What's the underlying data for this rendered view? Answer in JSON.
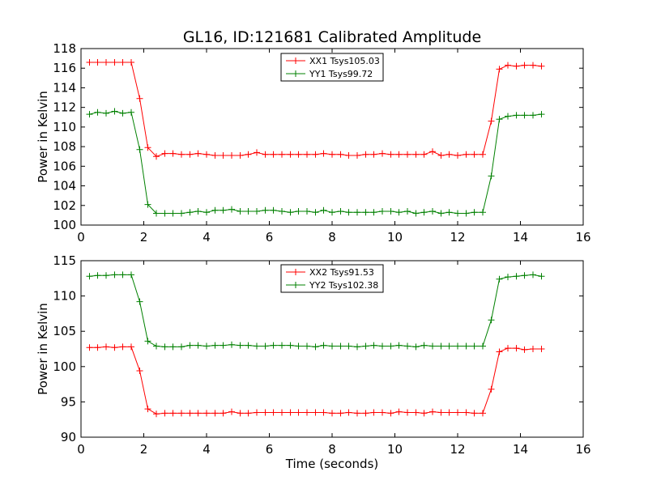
{
  "figure": {
    "title": "GL16, ID:121681 Calibrated Amplitude"
  },
  "chart_data": [
    {
      "type": "line",
      "title": "GL16, ID:121681 Calibrated Amplitude",
      "xlabel": "",
      "ylabel": "Power in Kelvin",
      "xlim": [
        0,
        16
      ],
      "ylim": [
        100,
        118
      ],
      "xticks": [
        0,
        2,
        4,
        6,
        8,
        10,
        12,
        14,
        16
      ],
      "yticks": [
        100,
        102,
        104,
        106,
        108,
        110,
        112,
        114,
        116,
        118
      ],
      "grid": false,
      "legend_position": "top-center",
      "x": [
        0.27,
        0.53,
        0.8,
        1.07,
        1.33,
        1.6,
        1.87,
        2.13,
        2.4,
        2.67,
        2.93,
        3.2,
        3.47,
        3.73,
        4.0,
        4.27,
        4.53,
        4.8,
        5.07,
        5.33,
        5.6,
        5.87,
        6.13,
        6.4,
        6.67,
        6.93,
        7.2,
        7.47,
        7.73,
        8.0,
        8.27,
        8.53,
        8.8,
        9.07,
        9.33,
        9.6,
        9.87,
        10.13,
        10.4,
        10.67,
        10.93,
        11.2,
        11.47,
        11.73,
        12.0,
        12.27,
        12.53,
        12.8,
        13.07,
        13.33,
        13.6,
        13.87,
        14.13,
        14.4,
        14.67
      ],
      "series": [
        {
          "name": "XX1 Tsys105.03",
          "color": "#ff0000",
          "values": [
            116.6,
            116.6,
            116.6,
            116.6,
            116.6,
            116.6,
            112.9,
            107.9,
            107.0,
            107.3,
            107.3,
            107.2,
            107.2,
            107.3,
            107.2,
            107.1,
            107.1,
            107.1,
            107.1,
            107.2,
            107.4,
            107.2,
            107.2,
            107.2,
            107.2,
            107.2,
            107.2,
            107.2,
            107.3,
            107.2,
            107.2,
            107.1,
            107.1,
            107.2,
            107.2,
            107.3,
            107.2,
            107.2,
            107.2,
            107.2,
            107.2,
            107.5,
            107.1,
            107.2,
            107.1,
            107.2,
            107.2,
            107.2,
            110.6,
            115.9,
            116.3,
            116.2,
            116.3,
            116.3,
            116.2
          ]
        },
        {
          "name": "YY1 Tsys99.72",
          "color": "#008000",
          "values": [
            111.3,
            111.5,
            111.4,
            111.6,
            111.4,
            111.5,
            107.7,
            102.1,
            101.2,
            101.2,
            101.2,
            101.2,
            101.3,
            101.4,
            101.3,
            101.5,
            101.5,
            101.6,
            101.4,
            101.4,
            101.4,
            101.5,
            101.5,
            101.4,
            101.3,
            101.4,
            101.4,
            101.3,
            101.5,
            101.3,
            101.4,
            101.3,
            101.3,
            101.3,
            101.3,
            101.4,
            101.4,
            101.3,
            101.4,
            101.2,
            101.3,
            101.4,
            101.2,
            101.3,
            101.2,
            101.2,
            101.3,
            101.3,
            105.0,
            110.8,
            111.1,
            111.2,
            111.2,
            111.2,
            111.3
          ]
        }
      ]
    },
    {
      "type": "line",
      "title": "",
      "xlabel": "Time (seconds)",
      "ylabel": "Power in Kelvin",
      "xlim": [
        0,
        16
      ],
      "ylim": [
        90,
        115
      ],
      "xticks": [
        0,
        2,
        4,
        6,
        8,
        10,
        12,
        14,
        16
      ],
      "yticks": [
        90,
        95,
        100,
        105,
        110,
        115
      ],
      "grid": false,
      "legend_position": "top-center",
      "x": [
        0.27,
        0.53,
        0.8,
        1.07,
        1.33,
        1.6,
        1.87,
        2.13,
        2.4,
        2.67,
        2.93,
        3.2,
        3.47,
        3.73,
        4.0,
        4.27,
        4.53,
        4.8,
        5.07,
        5.33,
        5.6,
        5.87,
        6.13,
        6.4,
        6.67,
        6.93,
        7.2,
        7.47,
        7.73,
        8.0,
        8.27,
        8.53,
        8.8,
        9.07,
        9.33,
        9.6,
        9.87,
        10.13,
        10.4,
        10.67,
        10.93,
        11.2,
        11.47,
        11.73,
        12.0,
        12.27,
        12.53,
        12.8,
        13.07,
        13.33,
        13.6,
        13.87,
        14.13,
        14.4,
        14.67
      ],
      "series": [
        {
          "name": "XX2 Tsys91.53",
          "color": "#ff0000",
          "values": [
            102.7,
            102.7,
            102.8,
            102.7,
            102.8,
            102.8,
            99.4,
            94.0,
            93.3,
            93.4,
            93.4,
            93.4,
            93.4,
            93.4,
            93.4,
            93.4,
            93.4,
            93.6,
            93.4,
            93.4,
            93.5,
            93.5,
            93.5,
            93.5,
            93.5,
            93.5,
            93.5,
            93.5,
            93.5,
            93.4,
            93.4,
            93.5,
            93.4,
            93.4,
            93.5,
            93.5,
            93.4,
            93.6,
            93.5,
            93.5,
            93.4,
            93.6,
            93.5,
            93.5,
            93.5,
            93.5,
            93.4,
            93.4,
            96.8,
            102.1,
            102.6,
            102.6,
            102.4,
            102.5,
            102.5
          ]
        },
        {
          "name": "YY2 Tsys102.38",
          "color": "#008000",
          "values": [
            112.8,
            112.9,
            112.9,
            113.0,
            113.0,
            113.0,
            109.2,
            103.6,
            102.9,
            102.8,
            102.8,
            102.8,
            103.0,
            103.0,
            102.9,
            103.0,
            103.0,
            103.1,
            103.0,
            103.0,
            102.9,
            102.9,
            103.0,
            103.0,
            103.0,
            102.9,
            102.9,
            102.8,
            103.0,
            102.9,
            102.9,
            102.9,
            102.8,
            102.9,
            103.0,
            102.9,
            102.9,
            103.0,
            102.9,
            102.8,
            103.0,
            102.9,
            102.9,
            102.9,
            102.9,
            102.9,
            102.9,
            102.9,
            106.6,
            112.4,
            112.7,
            112.8,
            112.9,
            113.0,
            112.8
          ]
        }
      ]
    }
  ]
}
